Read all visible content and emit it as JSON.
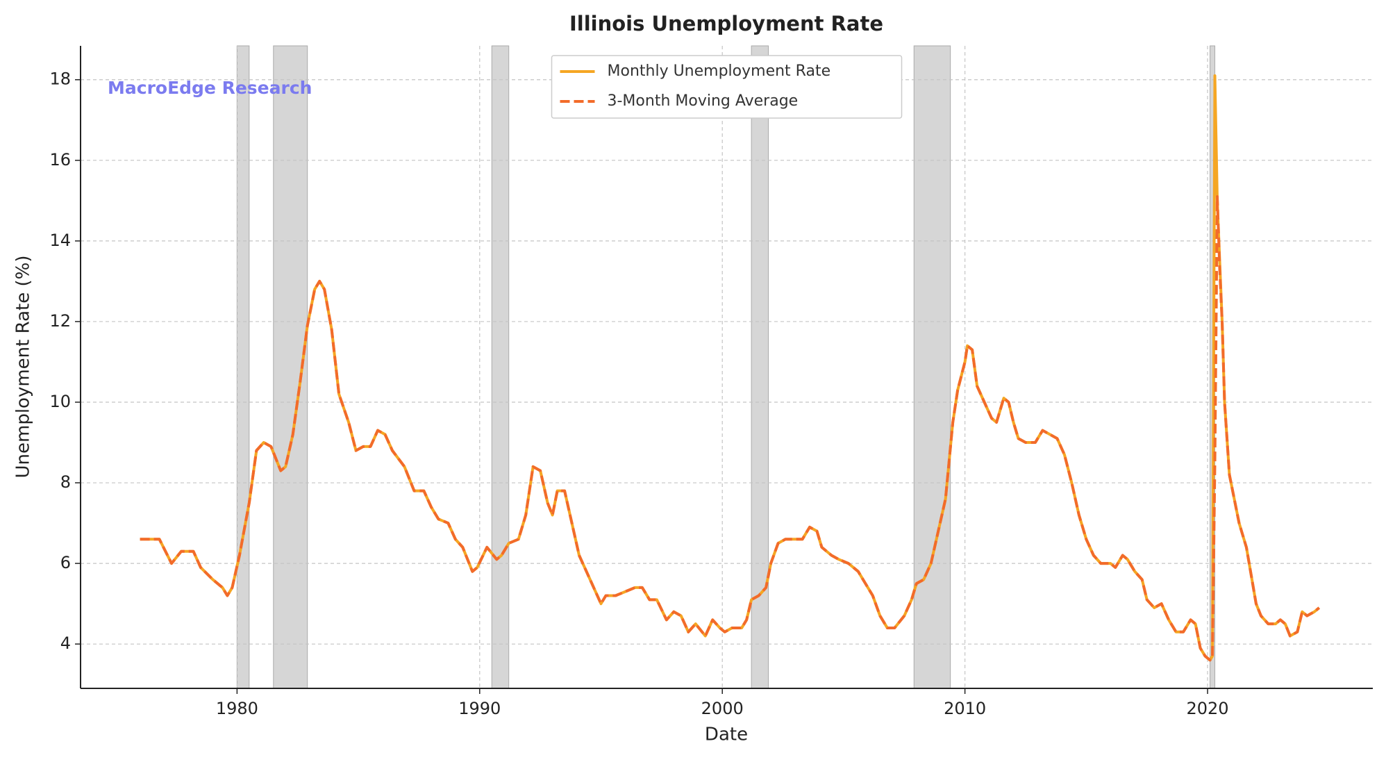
{
  "chart_data": {
    "type": "line",
    "title": "Illinois Unemployment Rate",
    "xlabel": "Date",
    "ylabel": "Unemployment Rate (%)",
    "watermark": "MacroEdge Research",
    "x": [
      1976.0,
      1976.8,
      1977.3,
      1977.7,
      1978.2,
      1978.5,
      1979.0,
      1979.4,
      1979.6,
      1979.8,
      1980.1,
      1980.5,
      1980.8,
      1981.1,
      1981.4,
      1981.8,
      1982.0,
      1982.3,
      1982.6,
      1982.9,
      1983.2,
      1983.4,
      1983.6,
      1983.9,
      1984.2,
      1984.6,
      1984.9,
      1985.2,
      1985.5,
      1985.8,
      1986.1,
      1986.4,
      1986.9,
      1987.3,
      1987.7,
      1988.0,
      1988.3,
      1988.7,
      1989.0,
      1989.3,
      1989.7,
      1989.9,
      1990.3,
      1990.7,
      1990.9,
      1991.2,
      1991.6,
      1991.9,
      1992.2,
      1992.5,
      1992.8,
      1993.0,
      1993.2,
      1993.5,
      1993.8,
      1994.1,
      1994.4,
      1994.7,
      1995.0,
      1995.2,
      1995.6,
      1996.0,
      1996.4,
      1996.7,
      1997.0,
      1997.3,
      1997.7,
      1998.0,
      1998.3,
      1998.6,
      1998.9,
      1999.3,
      1999.6,
      1999.9,
      2000.1,
      2000.4,
      2000.8,
      2001.0,
      2001.2,
      2001.5,
      2001.8,
      2002.0,
      2002.3,
      2002.6,
      2003.0,
      2003.3,
      2003.6,
      2003.9,
      2004.1,
      2004.5,
      2004.8,
      2005.2,
      2005.6,
      2005.9,
      2006.2,
      2006.5,
      2006.8,
      2007.1,
      2007.5,
      2007.8,
      2008.0,
      2008.3,
      2008.6,
      2008.9,
      2009.2,
      2009.5,
      2009.7,
      2010.0,
      2010.1,
      2010.3,
      2010.5,
      2010.8,
      2011.1,
      2011.3,
      2011.6,
      2011.8,
      2012.0,
      2012.2,
      2012.5,
      2012.9,
      2013.2,
      2013.5,
      2013.8,
      2014.1,
      2014.4,
      2014.7,
      2015.0,
      2015.3,
      2015.6,
      2016.0,
      2016.2,
      2016.5,
      2016.7,
      2017.0,
      2017.3,
      2017.5,
      2017.8,
      2018.1,
      2018.4,
      2018.7,
      2019.0,
      2019.3,
      2019.5,
      2019.7,
      2019.9,
      2020.1,
      2020.2,
      2020.3,
      2020.4,
      2020.5,
      2020.6,
      2020.7,
      2020.9,
      2021.1,
      2021.3,
      2021.6,
      2021.8,
      2022.0,
      2022.2,
      2022.5,
      2022.8,
      2023.0,
      2023.2,
      2023.4,
      2023.7,
      2023.9,
      2024.1,
      2024.4,
      2024.6
    ],
    "series": [
      {
        "name": "Monthly Unemployment Rate",
        "color": "#f5a623",
        "dashed": false,
        "values": [
          6.6,
          6.6,
          6.0,
          6.3,
          6.3,
          5.9,
          5.6,
          5.4,
          5.2,
          5.4,
          6.2,
          7.5,
          8.8,
          9.0,
          8.9,
          8.3,
          8.4,
          9.2,
          10.5,
          11.9,
          12.8,
          13.0,
          12.8,
          11.8,
          10.2,
          9.5,
          8.8,
          8.9,
          8.9,
          9.3,
          9.2,
          8.8,
          8.4,
          7.8,
          7.8,
          7.4,
          7.1,
          7.0,
          6.6,
          6.4,
          5.8,
          5.9,
          6.4,
          6.1,
          6.2,
          6.5,
          6.6,
          7.2,
          8.4,
          8.3,
          7.5,
          7.2,
          7.8,
          7.8,
          7.0,
          6.2,
          5.8,
          5.4,
          5.0,
          5.2,
          5.2,
          5.3,
          5.4,
          5.4,
          5.1,
          5.1,
          4.6,
          4.8,
          4.7,
          4.3,
          4.5,
          4.2,
          4.6,
          4.4,
          4.3,
          4.4,
          4.4,
          4.6,
          5.1,
          5.2,
          5.4,
          6.0,
          6.5,
          6.6,
          6.6,
          6.6,
          6.9,
          6.8,
          6.4,
          6.2,
          6.1,
          6.0,
          5.8,
          5.5,
          5.2,
          4.7,
          4.4,
          4.4,
          4.7,
          5.1,
          5.5,
          5.6,
          6.0,
          6.8,
          7.6,
          9.5,
          10.3,
          11.0,
          11.4,
          11.3,
          10.4,
          10.0,
          9.6,
          9.5,
          10.1,
          10.0,
          9.5,
          9.1,
          9.0,
          9.0,
          9.3,
          9.2,
          9.1,
          8.7,
          8.0,
          7.2,
          6.6,
          6.2,
          6.0,
          6.0,
          5.9,
          6.2,
          6.1,
          5.8,
          5.6,
          5.1,
          4.9,
          5.0,
          4.6,
          4.3,
          4.3,
          4.6,
          4.5,
          3.9,
          3.7,
          3.6,
          3.7,
          18.1,
          15.0,
          13.5,
          12.0,
          10.0,
          8.2,
          7.6,
          7.0,
          6.4,
          5.7,
          5.0,
          4.7,
          4.5,
          4.5,
          4.6,
          4.5,
          4.2,
          4.3,
          4.8,
          4.7,
          4.8,
          4.9
        ]
      },
      {
        "name": "3-Month Moving Average",
        "color": "#f26b2a",
        "dashed": true,
        "values": [
          6.6,
          6.6,
          6.0,
          6.3,
          6.3,
          5.9,
          5.6,
          5.4,
          5.2,
          5.4,
          6.2,
          7.5,
          8.8,
          9.0,
          8.9,
          8.3,
          8.4,
          9.2,
          10.5,
          11.9,
          12.8,
          13.0,
          12.8,
          11.8,
          10.2,
          9.5,
          8.8,
          8.9,
          8.9,
          9.3,
          9.2,
          8.8,
          8.4,
          7.8,
          7.8,
          7.4,
          7.1,
          7.0,
          6.6,
          6.4,
          5.8,
          5.9,
          6.4,
          6.1,
          6.2,
          6.5,
          6.6,
          7.2,
          8.4,
          8.3,
          7.5,
          7.2,
          7.8,
          7.8,
          7.0,
          6.2,
          5.8,
          5.4,
          5.0,
          5.2,
          5.2,
          5.3,
          5.4,
          5.4,
          5.1,
          5.1,
          4.6,
          4.8,
          4.7,
          4.3,
          4.5,
          4.2,
          4.6,
          4.4,
          4.3,
          4.4,
          4.4,
          4.6,
          5.1,
          5.2,
          5.4,
          6.0,
          6.5,
          6.6,
          6.6,
          6.6,
          6.9,
          6.8,
          6.4,
          6.2,
          6.1,
          6.0,
          5.8,
          5.5,
          5.2,
          4.7,
          4.4,
          4.4,
          4.7,
          5.1,
          5.5,
          5.6,
          6.0,
          6.8,
          7.6,
          9.5,
          10.3,
          11.0,
          11.4,
          11.3,
          10.4,
          10.0,
          9.6,
          9.5,
          10.1,
          10.0,
          9.5,
          9.1,
          9.0,
          9.0,
          9.3,
          9.2,
          9.1,
          8.7,
          8.0,
          7.2,
          6.6,
          6.2,
          6.0,
          6.0,
          5.9,
          6.2,
          6.1,
          5.8,
          5.6,
          5.1,
          4.9,
          5.0,
          4.6,
          4.3,
          4.3,
          4.6,
          4.5,
          3.9,
          3.7,
          3.6,
          3.7,
          8.5,
          15.1,
          13.3,
          12.0,
          10.0,
          8.2,
          7.6,
          7.0,
          6.4,
          5.7,
          5.0,
          4.7,
          4.5,
          4.5,
          4.6,
          4.5,
          4.2,
          4.3,
          4.8,
          4.7,
          4.8,
          4.9
        ]
      }
    ],
    "recessions": [
      [
        1980.0,
        1980.5
      ],
      [
        1981.5,
        1982.9
      ],
      [
        1990.5,
        1991.2
      ],
      [
        2001.2,
        2001.9
      ],
      [
        2007.9,
        2009.4
      ],
      [
        2020.1,
        2020.3
      ]
    ],
    "recession_color": "#d6d6d6",
    "xlim": [
      1973.55,
      2026.81
    ],
    "xticks": [
      1980,
      1990,
      2000,
      2010,
      2020
    ],
    "ylim": [
      2.9,
      18.84
    ],
    "yticks": [
      4,
      6,
      8,
      10,
      12,
      14,
      16,
      18
    ],
    "grid": true,
    "legend": "upper center"
  }
}
